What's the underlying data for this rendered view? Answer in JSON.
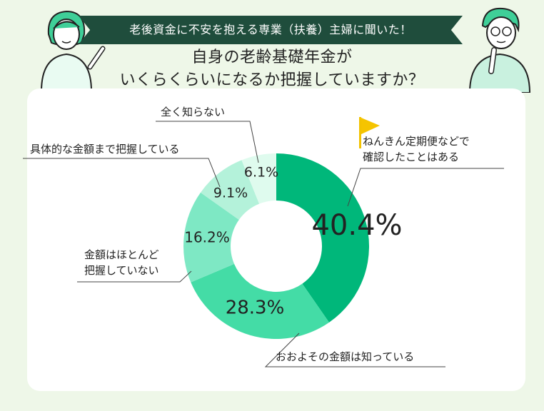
{
  "header": {
    "banner": "老後資金に不安を抱える専業（扶養）主婦に聞いた！",
    "title_line1": "自身の老齢基礎年金が",
    "title_line2": "いくらくらいになるか把握していますか？"
  },
  "chart_data": {
    "type": "pie",
    "style": "donut",
    "categories": [
      "ねんきん定期便などで確認したことはある",
      "おおよその金額は知っている",
      "金額はほとんど把握していない",
      "具体的な金額まで把握している",
      "全く知らない"
    ],
    "values": [
      40.4,
      28.3,
      16.2,
      9.1,
      6.1
    ],
    "value_labels": [
      "40.4%",
      "28.3%",
      "16.2%",
      "9.1%",
      "6.1%"
    ],
    "label_lines": [
      [
        "ねんきん定期便などで",
        "確認したことはある"
      ],
      [
        "おおよその金額は知っている"
      ],
      [
        "金額はほとんど",
        "把握していない"
      ],
      [
        "具体的な金額まで把握している"
      ],
      [
        "全く知らない"
      ]
    ],
    "colors": [
      "#00b77a",
      "#44dca6",
      "#7ee8c4",
      "#b4f2da",
      "#dffbee"
    ],
    "legend": "none"
  }
}
